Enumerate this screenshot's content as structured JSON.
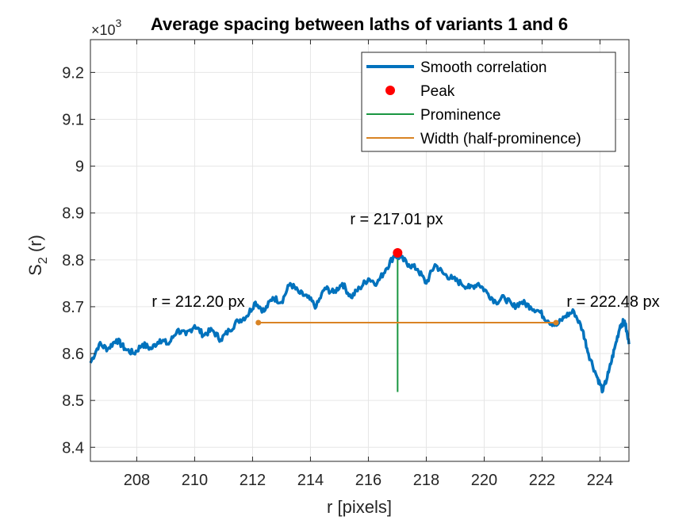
{
  "chart_data": {
    "type": "line",
    "title": "Average spacing between laths of variants 1 and 6",
    "xlabel": "r [pixels]",
    "ylabel_main": "S",
    "ylabel_sub": "2",
    "ylabel_tail": " (r)",
    "y_exponent_label": "×10",
    "y_exponent_power": "3",
    "xlim": [
      206.4,
      225.0
    ],
    "ylim": [
      8.37,
      9.27
    ],
    "xticks": [
      208,
      210,
      212,
      214,
      216,
      218,
      220,
      222,
      224
    ],
    "yticks": [
      8.4,
      8.5,
      8.6,
      8.7,
      8.8,
      8.9,
      9.0,
      9.1,
      9.2
    ],
    "ytick_labels": [
      "8.4",
      "8.5",
      "8.6",
      "8.7",
      "8.8",
      "8.9",
      "9",
      "9.1",
      "9.2"
    ],
    "grid": true,
    "legend_position": "top-right",
    "series": [
      {
        "name": "Smooth correlation",
        "color": "#0072BD",
        "x": [
          206.4,
          206.7,
          207.0,
          207.3,
          207.6,
          207.9,
          208.2,
          208.5,
          208.8,
          209.1,
          209.4,
          209.7,
          210.0,
          210.3,
          210.6,
          210.9,
          211.2,
          211.5,
          211.8,
          212.1,
          212.4,
          212.7,
          213.0,
          213.3,
          213.6,
          213.9,
          214.2,
          214.5,
          214.8,
          215.1,
          215.4,
          215.7,
          216.0,
          216.3,
          216.6,
          216.9,
          217.1,
          217.4,
          217.7,
          218.0,
          218.3,
          218.6,
          218.9,
          219.2,
          219.5,
          219.8,
          220.1,
          220.4,
          220.7,
          221.0,
          221.3,
          221.6,
          221.9,
          222.2,
          222.5,
          222.8,
          223.1,
          223.4,
          223.6,
          223.9,
          224.1,
          224.3,
          224.5,
          224.7,
          224.85,
          225.0
        ],
        "y": [
          8.58,
          8.62,
          8.61,
          8.63,
          8.61,
          8.6,
          8.62,
          8.61,
          8.63,
          8.62,
          8.65,
          8.64,
          8.66,
          8.64,
          8.65,
          8.63,
          8.65,
          8.67,
          8.68,
          8.71,
          8.69,
          8.72,
          8.71,
          8.75,
          8.73,
          8.72,
          8.7,
          8.74,
          8.73,
          8.75,
          8.72,
          8.74,
          8.76,
          8.75,
          8.78,
          8.81,
          8.805,
          8.79,
          8.78,
          8.75,
          8.79,
          8.77,
          8.76,
          8.75,
          8.74,
          8.75,
          8.73,
          8.71,
          8.72,
          8.7,
          8.71,
          8.7,
          8.69,
          8.67,
          8.66,
          8.68,
          8.69,
          8.65,
          8.6,
          8.55,
          8.52,
          8.56,
          8.61,
          8.66,
          8.67,
          8.62
        ]
      }
    ],
    "peak": {
      "name": "Peak",
      "x": 217.01,
      "y": 8.815,
      "color": "#FF0000",
      "label": "r = 217.01 px"
    },
    "prominence": {
      "name": "Prominence",
      "x": 217.01,
      "y_from": 8.518,
      "y_to": 8.81,
      "color": "#1A9641"
    },
    "width": {
      "name": "Width (half-prominence)",
      "y": 8.666,
      "x_from": 212.2,
      "x_to": 222.48,
      "color": "#D98324",
      "left_label": "r = 212.20 px",
      "right_label": "r = 222.48 px"
    }
  }
}
